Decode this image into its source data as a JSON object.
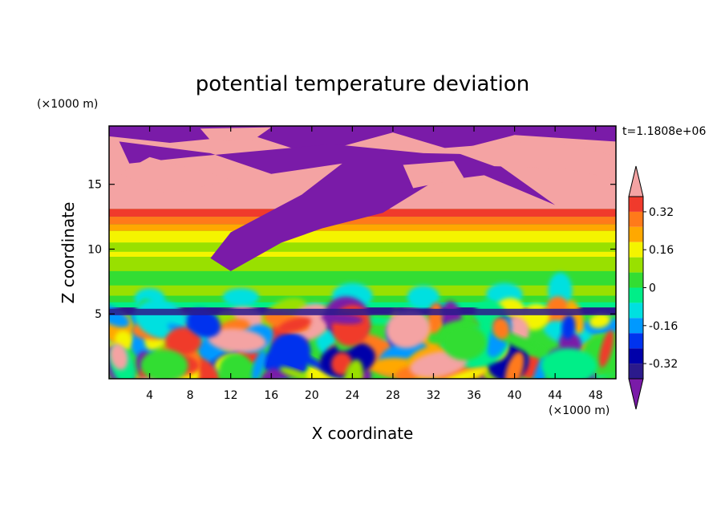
{
  "chart_data": {
    "type": "heatmap",
    "title": "potential temperature deviation",
    "xlabel": "X coordinate",
    "ylabel": "Z coordinate",
    "x_unit": "(×1000 m)",
    "y_unit": "(×1000 m)",
    "time_label": "t=1.1808e+06",
    "xlim": [
      0,
      50
    ],
    "ylim": [
      0,
      19.5
    ],
    "x_ticks": [
      4,
      8,
      12,
      16,
      20,
      24,
      28,
      32,
      36,
      40,
      44,
      48
    ],
    "y_ticks": [
      5,
      10,
      15
    ],
    "colorbar": {
      "levels": [
        -0.4,
        -0.32,
        -0.24,
        -0.16,
        -0.08,
        0,
        0.08,
        0.16,
        0.24,
        0.32,
        0.4
      ],
      "tick_labels": [
        "0.32",
        "0.16",
        "0",
        "-0.16",
        "-0.32"
      ],
      "tick_values": [
        0.32,
        0.16,
        0,
        -0.16,
        -0.32
      ],
      "colors": [
        "#f4a3a3",
        "#f03a2c",
        "#ff7a1a",
        "#ffa800",
        "#f4f400",
        "#99e000",
        "#33dd33",
        "#00ee88",
        "#00e0e0",
        "#0099ff",
        "#0033ee",
        "#0000aa",
        "#2b1a8c",
        "#7a1ba8"
      ],
      "extend": "both"
    }
  }
}
